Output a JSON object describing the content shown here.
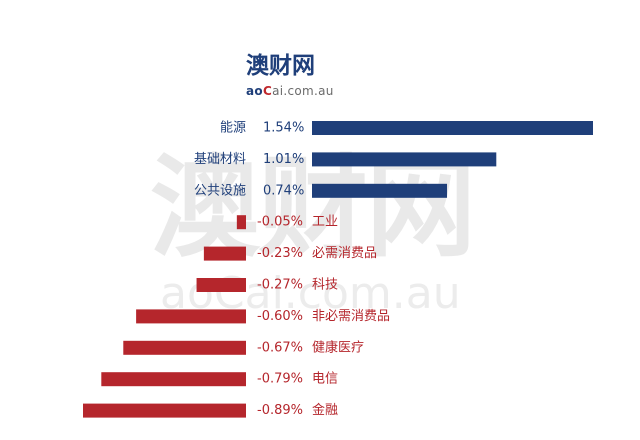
{
  "logo": {
    "title": "澳财网",
    "sub_a": "ao",
    "sub_c": "C",
    "sub_rest": "ai.com.au"
  },
  "watermark": {
    "cn": "澳财网",
    "en": "aoCai.com.au"
  },
  "colors": {
    "positive": "#1f3f7a",
    "negative": "#b5262c"
  },
  "chart_data": {
    "type": "bar",
    "orientation": "horizontal",
    "categories": [
      "能源",
      "基础材料",
      "公共设施",
      "工业",
      "必需消费品",
      "科技",
      "非必需消费品",
      "健康医疗",
      "电信",
      "金融"
    ],
    "values": [
      1.54,
      1.01,
      0.74,
      -0.05,
      -0.23,
      -0.27,
      -0.6,
      -0.67,
      -0.79,
      -0.89
    ],
    "value_labels": [
      "1.54%",
      "1.01%",
      "0.74%",
      "-0.05%",
      "-0.23%",
      "-0.27%",
      "-0.60%",
      "-0.67%",
      "-0.79%",
      "-0.89%"
    ],
    "grid": false,
    "legend": "none"
  }
}
